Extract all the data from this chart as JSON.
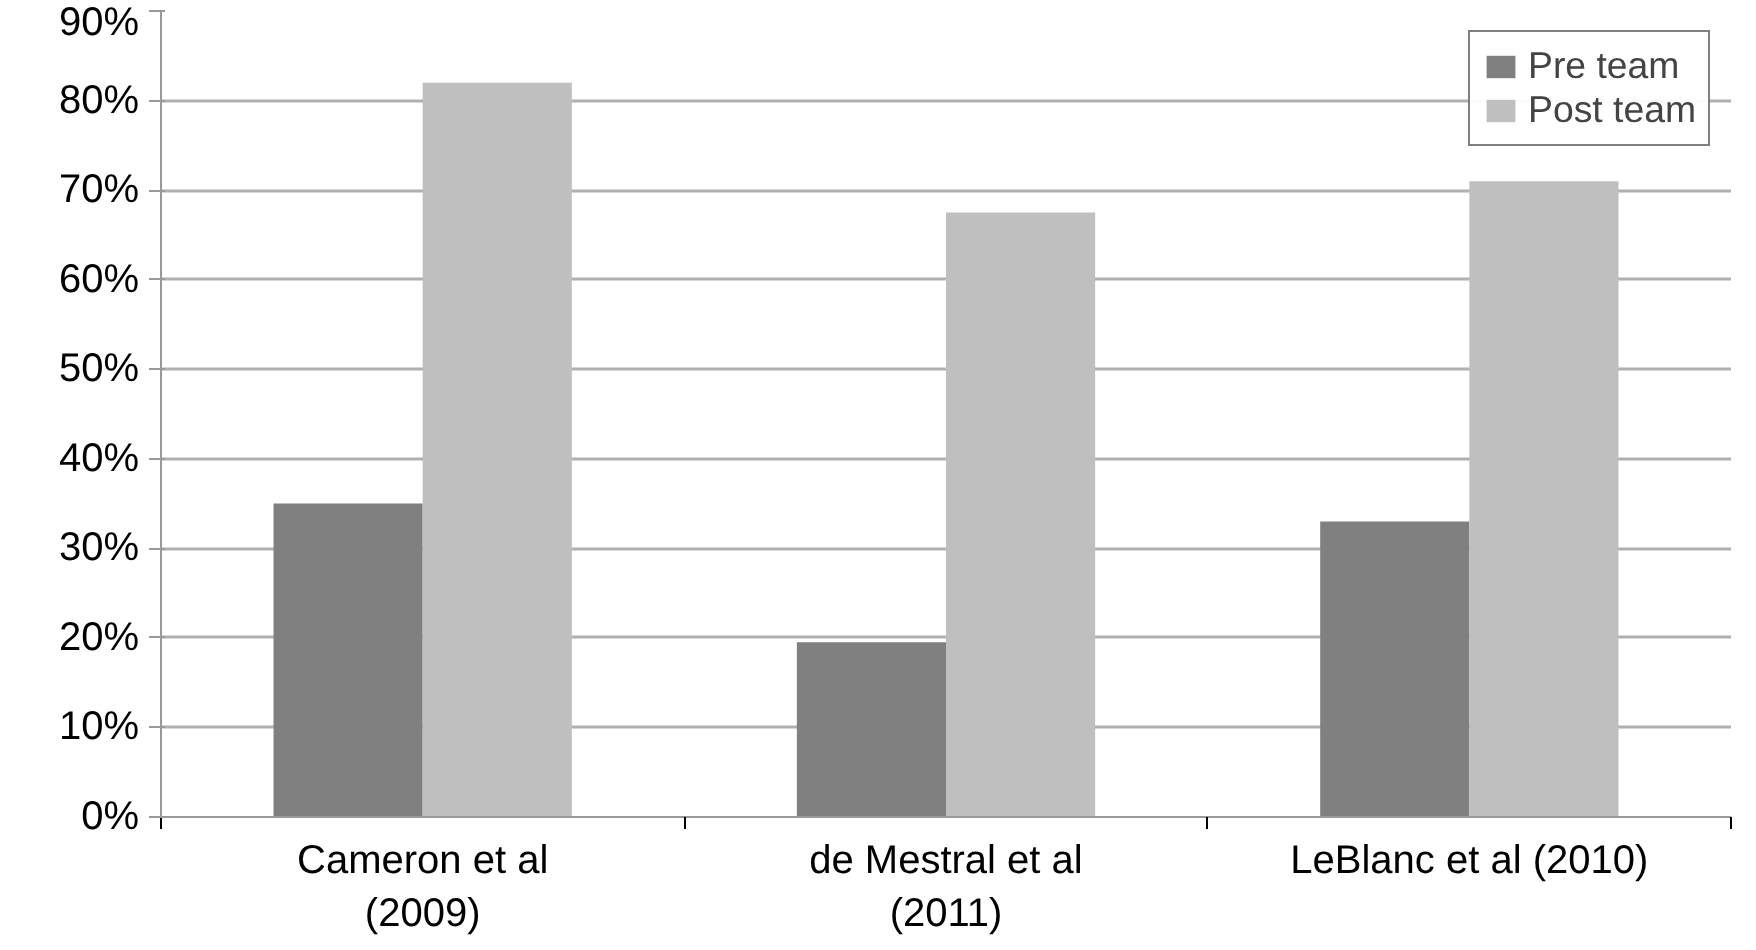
{
  "chart_data": {
    "type": "bar",
    "categories": [
      "Cameron et al\n(2009)",
      "de Mestral et al\n(2011)",
      "LeBlanc et al (2010)"
    ],
    "series": [
      {
        "name": "Pre team",
        "color": "#808080",
        "values": [
          35,
          19.5,
          33
        ]
      },
      {
        "name": "Post team",
        "color": "#bfbfbf",
        "values": [
          82,
          67.5,
          71
        ]
      }
    ],
    "ylim": [
      0,
      90
    ],
    "yticks": [
      {
        "value": 0,
        "label": "0%"
      },
      {
        "value": 10,
        "label": "10%"
      },
      {
        "value": 20,
        "label": "20%"
      },
      {
        "value": 30,
        "label": "30%"
      },
      {
        "value": 40,
        "label": "40%"
      },
      {
        "value": 50,
        "label": "50%"
      },
      {
        "value": 60,
        "label": "60%"
      },
      {
        "value": 70,
        "label": "70%"
      },
      {
        "value": 80,
        "label": "80%"
      },
      {
        "value": 90,
        "label": "90%"
      }
    ],
    "grid": "y",
    "legend": "top right"
  }
}
